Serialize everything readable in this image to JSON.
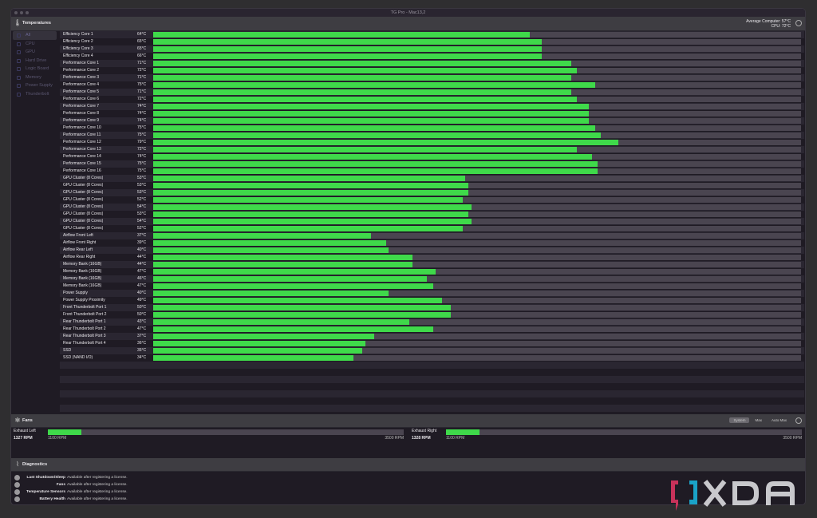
{
  "window": {
    "title": "TG Pro - Mac13,2"
  },
  "temperatures": {
    "title": "Temperatures",
    "average_label": "Average Computer:",
    "average_value": "57°C",
    "cpu_label": "CPU:",
    "cpu_value": "72°C"
  },
  "sidebar": {
    "items": [
      {
        "label": "All",
        "selected": true
      },
      {
        "label": "CPU"
      },
      {
        "label": "GPU"
      },
      {
        "label": "Hard Drive"
      },
      {
        "label": "Logic Board"
      },
      {
        "label": "Memory"
      },
      {
        "label": "Power Supply"
      },
      {
        "label": "Thunderbolt"
      }
    ]
  },
  "sensors": [
    {
      "name": "Efficiency Core 1",
      "temp": 64,
      "label": "64°C"
    },
    {
      "name": "Efficiency Core 2",
      "temp": 66,
      "label": "65°C"
    },
    {
      "name": "Efficiency Core 3",
      "temp": 66,
      "label": "65°C"
    },
    {
      "name": "Efficiency Core 4",
      "temp": 66,
      "label": "66°C"
    },
    {
      "name": "Performance Core 1",
      "temp": 71,
      "label": "71°C"
    },
    {
      "name": "Performance Core 2",
      "temp": 72,
      "label": "72°C"
    },
    {
      "name": "Performance Core 3",
      "temp": 71,
      "label": "71°C"
    },
    {
      "name": "Performance Core 4",
      "temp": 75,
      "label": "75°C"
    },
    {
      "name": "Performance Core 5",
      "temp": 71,
      "label": "71°C"
    },
    {
      "name": "Performance Core 6",
      "temp": 72,
      "label": "72°C"
    },
    {
      "name": "Performance Core 7",
      "temp": 74,
      "label": "74°C"
    },
    {
      "name": "Performance Core 8",
      "temp": 74,
      "label": "74°C"
    },
    {
      "name": "Performance Core 9",
      "temp": 74,
      "label": "74°C"
    },
    {
      "name": "Performance Core 10",
      "temp": 75,
      "label": "75°C"
    },
    {
      "name": "Performance Core 11",
      "temp": 76,
      "label": "75°C"
    },
    {
      "name": "Performance Core 12",
      "temp": 79,
      "label": "79°C"
    },
    {
      "name": "Performance Core 13",
      "temp": 72,
      "label": "72°C"
    },
    {
      "name": "Performance Core 14",
      "temp": 74.5,
      "label": "74°C"
    },
    {
      "name": "Performance Core 15",
      "temp": 75.5,
      "label": "75°C"
    },
    {
      "name": "Performance Core 16",
      "temp": 75.5,
      "label": "75°C"
    },
    {
      "name": "GPU Cluster (8 Cores)",
      "temp": 53,
      "label": "53°C"
    },
    {
      "name": "GPU Cluster (8 Cores)",
      "temp": 53.5,
      "label": "53°C"
    },
    {
      "name": "GPU Cluster (8 Cores)",
      "temp": 53.5,
      "label": "53°C"
    },
    {
      "name": "GPU Cluster (8 Cores)",
      "temp": 52.5,
      "label": "52°C"
    },
    {
      "name": "GPU Cluster (8 Cores)",
      "temp": 54,
      "label": "54°C"
    },
    {
      "name": "GPU Cluster (8 Cores)",
      "temp": 53.5,
      "label": "53°C"
    },
    {
      "name": "GPU Cluster (8 Cores)",
      "temp": 54,
      "label": "54°C"
    },
    {
      "name": "GPU Cluster (8 Cores)",
      "temp": 52.5,
      "label": "52°C"
    },
    {
      "name": "Airflow Front Left",
      "temp": 37,
      "label": "37°C"
    },
    {
      "name": "Airflow Front Right",
      "temp": 39.5,
      "label": "39°C"
    },
    {
      "name": "Airflow Rear Left",
      "temp": 40,
      "label": "40°C"
    },
    {
      "name": "Airflow Rear Right",
      "temp": 44,
      "label": "44°C"
    },
    {
      "name": "Memory Bank (16GB)",
      "temp": 44,
      "label": "44°C"
    },
    {
      "name": "Memory Bank (16GB)",
      "temp": 48,
      "label": "47°C"
    },
    {
      "name": "Memory Bank (16GB)",
      "temp": 46.5,
      "label": "46°C"
    },
    {
      "name": "Memory Bank (16GB)",
      "temp": 47.5,
      "label": "47°C"
    },
    {
      "name": "Power Supply",
      "temp": 40,
      "label": "40°C"
    },
    {
      "name": "Power Supply Proximity",
      "temp": 49,
      "label": "49°C"
    },
    {
      "name": "Front Thunderbolt Port 1",
      "temp": 50.5,
      "label": "50°C"
    },
    {
      "name": "Front Thunderbolt Port 2",
      "temp": 50.5,
      "label": "50°C"
    },
    {
      "name": "Rear Thunderbolt Port 1",
      "temp": 43.5,
      "label": "43°C"
    },
    {
      "name": "Rear Thunderbolt Port 2",
      "temp": 47.5,
      "label": "47°C"
    },
    {
      "name": "Rear Thunderbolt Port 3",
      "temp": 37.5,
      "label": "37°C"
    },
    {
      "name": "Rear Thunderbolt Port 4",
      "temp": 36,
      "label": "36°C"
    },
    {
      "name": "SSD",
      "temp": 35.5,
      "label": "35°C"
    },
    {
      "name": "SSD (NAND I/O)",
      "temp": 34,
      "label": "34°C"
    }
  ],
  "fans": {
    "title": "Fans",
    "modes": [
      "System",
      "Max",
      "Auto Max"
    ],
    "selected_mode": "System",
    "items": [
      {
        "name": "Exhaust Left",
        "rpm": 1327,
        "rpm_label": "1327 RPM",
        "min_label": "1100 RPM",
        "max_label": "3500 RPM",
        "min": 1100,
        "max": 3500
      },
      {
        "name": "Exhaust Right",
        "rpm": 1328,
        "rpm_label": "1328 RPM",
        "min_label": "1100 RPM",
        "max_label": "3500 RPM",
        "min": 1100,
        "max": 3500
      }
    ]
  },
  "diagnostics": {
    "title": "Diagnostics",
    "items": [
      {
        "key": "Last Shutdown/Sleep",
        "value": "Available after registering a license."
      },
      {
        "key": "Fans",
        "value": "Available after registering a license."
      },
      {
        "key": "Temperature Sensors",
        "value": "Available after registering a license."
      },
      {
        "key": "Battery Health",
        "value": "Available after registering a license."
      }
    ]
  },
  "watermark": {
    "text": "XDA"
  },
  "colors": {
    "bar_fill": "#3fd94a",
    "track": "#4a4550",
    "background": "#1f1b24"
  }
}
